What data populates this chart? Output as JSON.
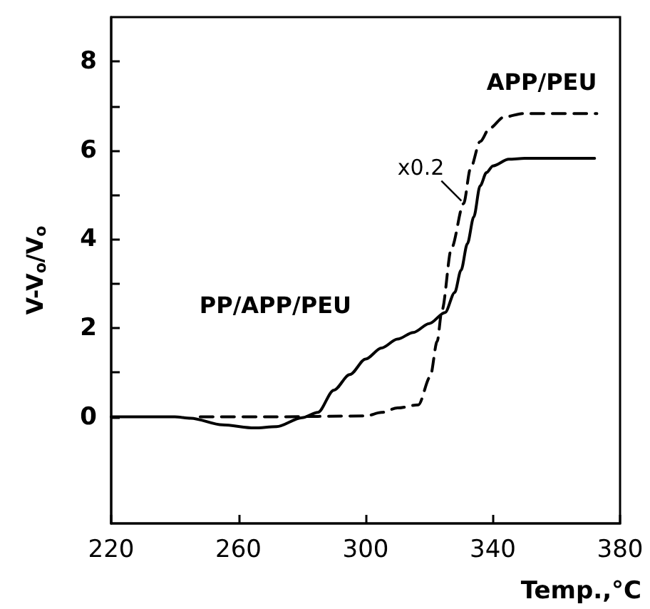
{
  "chart_data": {
    "type": "line",
    "xlabel": "Temp.,°C",
    "ylabel": "V-V$_{o}$/V$_{o}$",
    "xlim": [
      220,
      380
    ],
    "xticks": [
      220,
      260,
      300,
      340,
      380
    ],
    "ylim": [
      -2.4,
      9
    ],
    "yticks": [
      0,
      {
        "value": 1,
        "label": null
      },
      2,
      {
        "value": 3,
        "label": null
      },
      4,
      {
        "value": 5,
        "label": null
      },
      6,
      {
        "value": 7,
        "label": null
      },
      8
    ],
    "grid": false,
    "legend": false,
    "marker": "none",
    "annotations": [
      {
        "text": "x0.2",
        "x": 331,
        "y": 4.8
      }
    ],
    "series": [
      {
        "name": "PP/APP/PEU",
        "color": "#000000",
        "line_style": "solid",
        "x": [
          220,
          240,
          245,
          255,
          265,
          272,
          280,
          285,
          290,
          295,
          300,
          305,
          310,
          315,
          320,
          325,
          328,
          330,
          332,
          334,
          336,
          338,
          340,
          345,
          350,
          372
        ],
        "values": [
          0,
          0,
          -0.03,
          -0.18,
          -0.25,
          -0.22,
          -0.02,
          0.1,
          0.6,
          0.95,
          1.3,
          1.55,
          1.75,
          1.9,
          2.1,
          2.35,
          2.8,
          3.3,
          3.9,
          4.5,
          5.2,
          5.5,
          5.65,
          5.8,
          5.82,
          5.82
        ]
      },
      {
        "name": "APP/PEU",
        "color": "#000000",
        "line_style": "dashed",
        "x": [
          248,
          270,
          300,
          305,
          310,
          316.6,
          320.3,
          322.5,
          324,
          327,
          330.8,
          333,
          336,
          339,
          343.5,
          349.5,
          372.7
        ],
        "values": [
          0,
          0,
          0.02,
          0.1,
          0.2,
          0.27,
          0.9,
          1.7,
          2.4,
          3.8,
          4.8,
          5.6,
          6.2,
          6.5,
          6.75,
          6.83,
          6.83
        ]
      }
    ]
  }
}
